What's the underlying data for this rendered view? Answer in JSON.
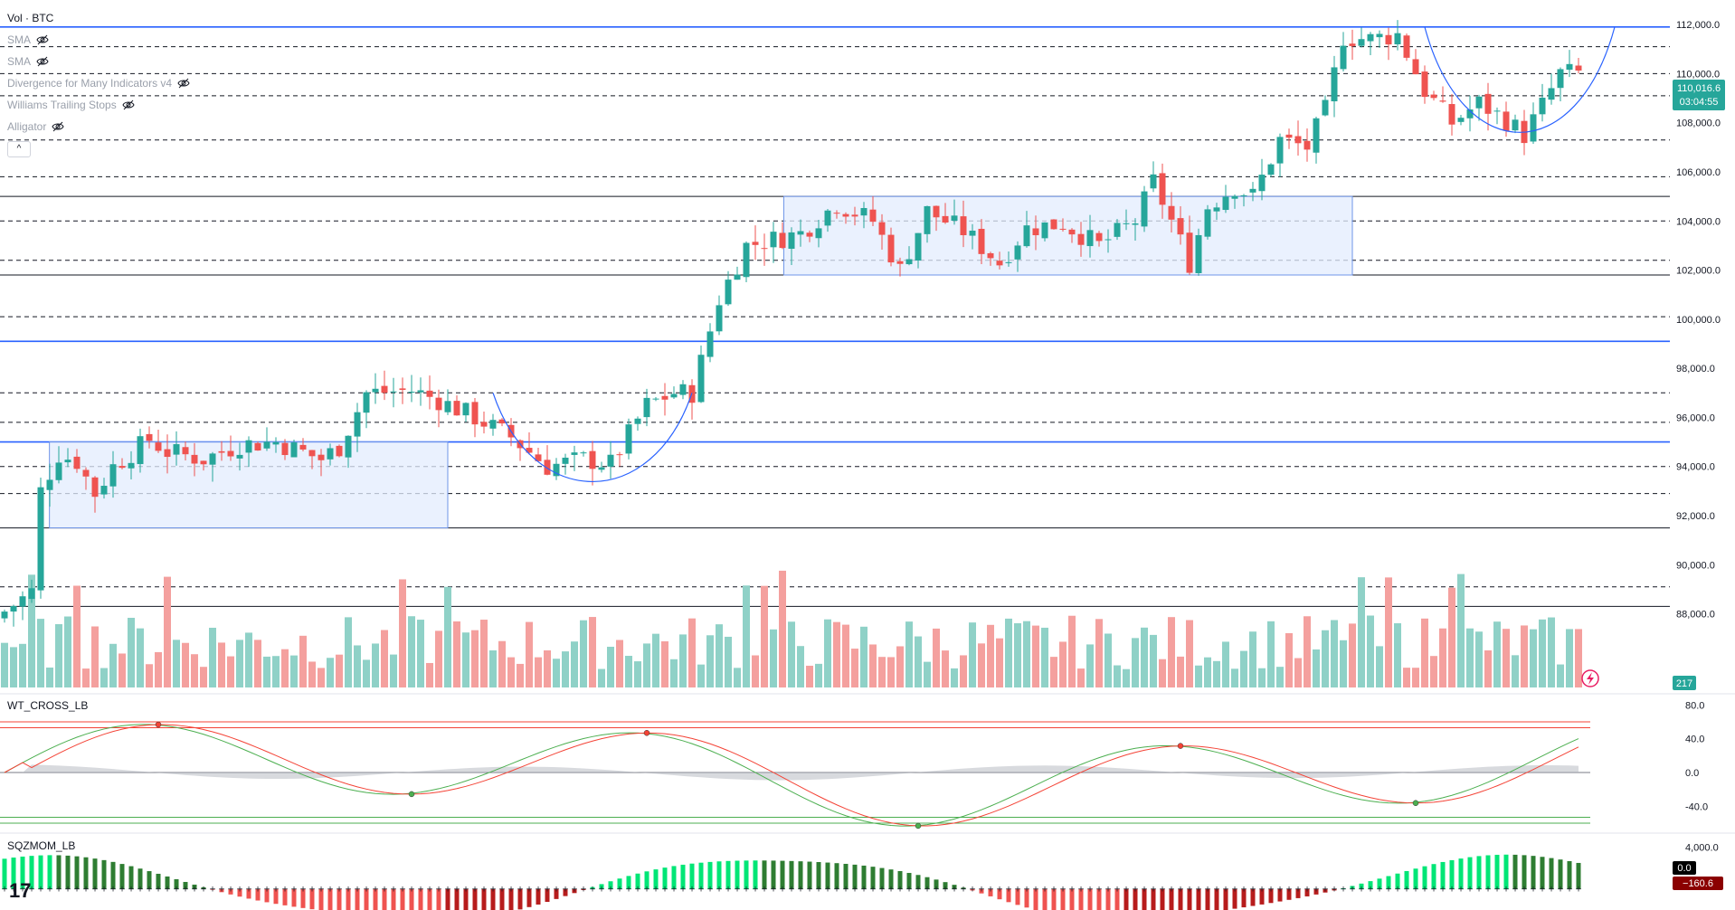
{
  "legend": {
    "symbol": "Vol · BTC",
    "indicators": [
      "SMA",
      "SMA",
      "Divergence for Many Indicators v4",
      "Williams Trailing Stops",
      "Alligator"
    ],
    "collapse_glyph": "^"
  },
  "price_badge": {
    "price": "110,016.6",
    "countdown": "03:04:55",
    "color": "#26a69a"
  },
  "volume_badge": {
    "value": "217",
    "color": "#26a69a"
  },
  "panes": {
    "wt": {
      "title": "WT_CROSS_LB",
      "ticks": [
        "80.0",
        "40.0",
        "0.0",
        "-40.0"
      ]
    },
    "sqz": {
      "title": "SQZMOM_LB",
      "ticks": [
        "4,000.0"
      ],
      "badge_zero": "0.0",
      "badge_value": "−160.6"
    }
  },
  "colors": {
    "up": "#26a69a",
    "down": "#ef5350",
    "vol_up": "#8fd1c7",
    "vol_down": "#f4a09e",
    "blue_line": "#2962ff",
    "zone_fill": "#e3ecfd",
    "zone_stroke": "#6f95e8",
    "wt_green": "#4caf50",
    "wt_red": "#f44336"
  },
  "chart_data": {
    "type": "candlestick",
    "ylim": [
      85000,
      113000
    ],
    "y_ticks": [
      "112,000.0",
      "110,000.0",
      "108,000.0",
      "106,000.0",
      "104,000.0",
      "102,000.0",
      "100,000.0",
      "98,000.0",
      "96,000.0",
      "94,000.0",
      "92,000.0",
      "90,000.0",
      "88,000.0"
    ],
    "y_tick_values": [
      112000,
      110000,
      108000,
      106000,
      104000,
      102000,
      100000,
      98000,
      96000,
      94000,
      92000,
      90000,
      88000
    ],
    "close_path_keypoints": [
      [
        0,
        88100
      ],
      [
        3,
        88900
      ],
      [
        4,
        93000
      ],
      [
        6,
        94500
      ],
      [
        8,
        94200
      ],
      [
        10,
        92900
      ],
      [
        12,
        94000
      ],
      [
        16,
        95100
      ],
      [
        18,
        94600
      ],
      [
        22,
        94300
      ],
      [
        26,
        94900
      ],
      [
        30,
        95000
      ],
      [
        35,
        94300
      ],
      [
        37,
        94800
      ],
      [
        40,
        97000
      ],
      [
        45,
        97100
      ],
      [
        48,
        96700
      ],
      [
        52,
        96000
      ],
      [
        56,
        95200
      ],
      [
        60,
        94000
      ],
      [
        64,
        94300
      ],
      [
        67,
        94100
      ],
      [
        71,
        96500
      ],
      [
        74,
        97000
      ],
      [
        76,
        97000
      ],
      [
        79,
        100800
      ],
      [
        82,
        103000
      ],
      [
        88,
        103500
      ],
      [
        92,
        104700
      ],
      [
        96,
        104000
      ],
      [
        99,
        102000
      ],
      [
        102,
        104400
      ],
      [
        106,
        103600
      ],
      [
        110,
        102300
      ],
      [
        113,
        103700
      ],
      [
        117,
        103900
      ],
      [
        121,
        103000
      ],
      [
        125,
        104000
      ],
      [
        127,
        105600
      ],
      [
        129,
        104000
      ],
      [
        131,
        102300
      ],
      [
        133,
        104600
      ],
      [
        136,
        105400
      ],
      [
        138,
        105000
      ],
      [
        141,
        107300
      ],
      [
        144,
        107000
      ],
      [
        146,
        108500
      ],
      [
        148,
        111500
      ],
      [
        151,
        111400
      ],
      [
        154,
        111600
      ],
      [
        157,
        109300
      ],
      [
        160,
        108000
      ],
      [
        163,
        108800
      ],
      [
        166,
        108100
      ],
      [
        168,
        107500
      ],
      [
        170,
        108700
      ],
      [
        172,
        110000
      ],
      [
        174,
        110016.6
      ]
    ],
    "horizontal_levels_solid_blue": [
      111900,
      99100,
      95000
    ],
    "horizontal_levels_solid_black": [
      105000,
      101800,
      91500,
      88300
    ],
    "horizontal_levels_dashed": [
      111100,
      110000,
      109100,
      107300,
      105800,
      104000,
      102400,
      100100,
      97000,
      95800,
      94000,
      92900,
      89100
    ],
    "range_boxes": [
      {
        "x": [
          3,
          48
        ],
        "y": [
          91500,
          95000
        ]
      },
      {
        "x": [
          85,
          148
        ],
        "y": [
          101800,
          105000
        ]
      }
    ],
    "cup_arcs": [
      {
        "x": [
          54,
          76
        ],
        "top": 97000,
        "bottom": 93100
      },
      {
        "x": [
          157,
          178
        ],
        "top": 111900,
        "bottom": 107100
      }
    ],
    "volume_count": 175,
    "wt_ylim": [
      -60,
      90
    ],
    "wt_levels": [
      60,
      53,
      -53,
      -60
    ],
    "sqz_ylim": [
      -1500,
      5000
    ]
  }
}
